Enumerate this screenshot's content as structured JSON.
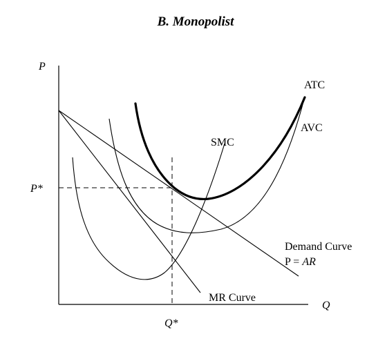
{
  "title": "B. Monopolist",
  "axes": {
    "y_label": "P",
    "x_label": "Q",
    "p_star": "P*",
    "q_star": "Q*"
  },
  "curves": {
    "atc": "ATC",
    "avc": "AVC",
    "smc": "SMC",
    "demand_line1": "Demand Curve",
    "demand_line2_prefix": "P = ",
    "demand_line2_italic": "AR",
    "mr": "MR Curve"
  }
}
